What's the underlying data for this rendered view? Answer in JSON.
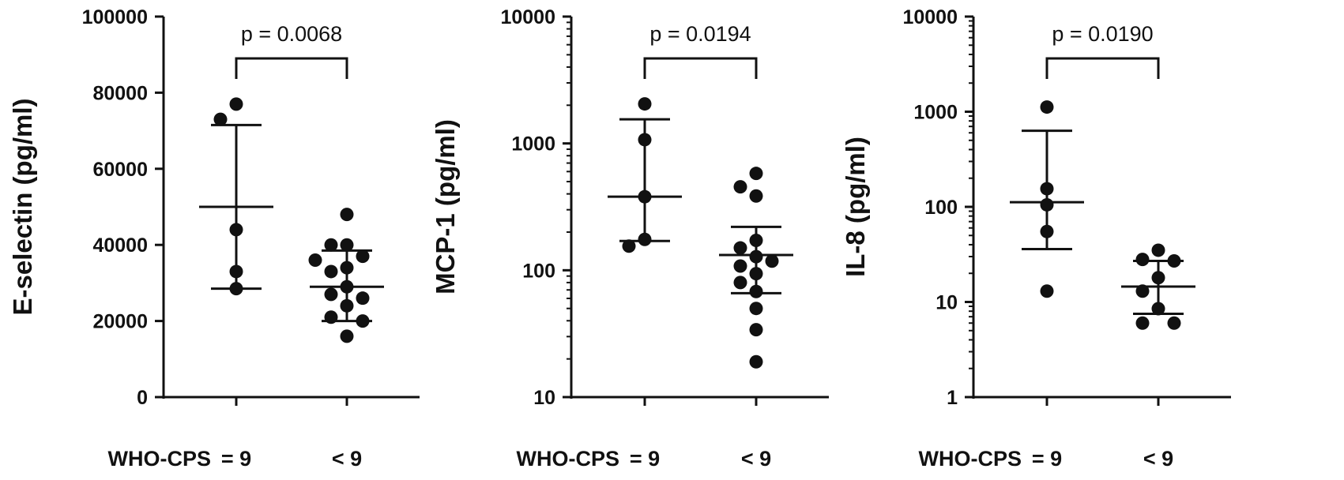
{
  "chart_data": [
    {
      "type": "scatter",
      "ylabel": "E-selectin (pg/ml)",
      "yscale": "linear",
      "ylim": [
        0,
        100000
      ],
      "yticks": [
        "0",
        "20000",
        "40000",
        "60000",
        "80000",
        "100000"
      ],
      "group_axis_title": "WHO-CPS",
      "categories": [
        "= 9",
        "< 9"
      ],
      "annotation": "p = 0.0068",
      "groups": [
        {
          "label": "= 9",
          "center": 50000,
          "err_low": 28500,
          "err_high": 71500,
          "points": [
            77000,
            73000,
            44000,
            33000,
            28500
          ]
        },
        {
          "label": "< 9",
          "center": 29000,
          "err_low": 20000,
          "err_high": 38500,
          "points": [
            48000,
            40000,
            40000,
            37000,
            36000,
            34000,
            33000,
            29000,
            27000,
            26000,
            24000,
            21000,
            20000,
            16000
          ]
        }
      ]
    },
    {
      "type": "scatter",
      "ylabel": "MCP-1 (pg/ml)",
      "yscale": "log",
      "ylim": [
        10,
        10000
      ],
      "yticks": [
        "10",
        "100",
        "1000",
        "10000"
      ],
      "group_axis_title": "WHO-CPS",
      "categories": [
        "= 9",
        "< 9"
      ],
      "annotation": "p = 0.0194",
      "groups": [
        {
          "label": "= 9",
          "center": 380,
          "err_low": 170,
          "err_high": 1550,
          "points": [
            2050,
            1070,
            380,
            175,
            155
          ]
        },
        {
          "label": "< 9",
          "center": 132,
          "err_low": 66,
          "err_high": 220,
          "points": [
            580,
            455,
            385,
            172,
            150,
            128,
            118,
            108,
            94,
            80,
            68,
            50,
            34,
            19
          ]
        }
      ]
    },
    {
      "type": "scatter",
      "ylabel": "IL-8 (pg/ml)",
      "yscale": "log",
      "ylim": [
        1,
        10000
      ],
      "yticks": [
        "1",
        "10",
        "100",
        "1000",
        "10000"
      ],
      "group_axis_title": "WHO-CPS",
      "categories": [
        "= 9",
        "< 9"
      ],
      "annotation": "p = 0.0190",
      "groups": [
        {
          "label": "= 9",
          "center": 112,
          "err_low": 36,
          "err_high": 630,
          "points": [
            1120,
            155,
            105,
            55,
            13
          ]
        },
        {
          "label": "< 9",
          "center": 14.5,
          "err_low": 7.5,
          "err_high": 27,
          "points": [
            35,
            28,
            27,
            18,
            13,
            8.5,
            6,
            6
          ]
        }
      ]
    }
  ]
}
